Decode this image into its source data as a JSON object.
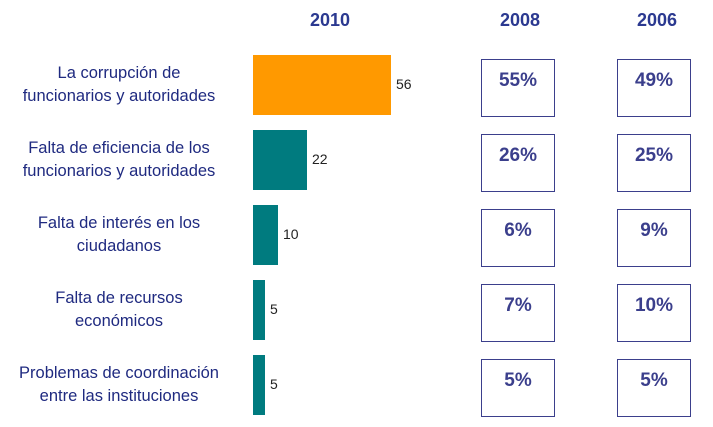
{
  "chart_data": {
    "type": "bar",
    "orientation": "horizontal",
    "categories": [
      "La corrupción de funcionarios y autoridades",
      "Falta de eficiencia de los funcionarios y autoridades",
      "Falta de interés en los ciudadanos",
      "Falta de recursos económicos",
      "Problemas de coordinación entre las instituciones"
    ],
    "category_lines": [
      [
        "La corrupción de",
        "funcionarios y autoridades"
      ],
      [
        "Falta de eficiencia de los",
        "funcionarios y autoridades"
      ],
      [
        "Falta de interés en los",
        "ciudadanos"
      ],
      [
        "Falta de recursos",
        "económicos"
      ],
      [
        "Problemas de coordinación",
        "entre las instituciones"
      ]
    ],
    "series": [
      {
        "name": "2010",
        "values": [
          56,
          22,
          10,
          5,
          5
        ],
        "value_labels": [
          "56",
          "22",
          "10",
          "5",
          "5"
        ]
      }
    ],
    "comparison_columns": [
      {
        "name": "2008",
        "values": [
          "55%",
          "26%",
          "6%",
          "7%",
          "5%"
        ]
      },
      {
        "name": "2006",
        "values": [
          "49%",
          "25%",
          "9%",
          "10%",
          "5%"
        ]
      }
    ],
    "colors": {
      "highlight": "#ff9900",
      "default": "#007b7f",
      "header": "#2b3990",
      "box": "#3b3f8c"
    },
    "highlight_index": 0,
    "xlim": [
      0,
      56
    ],
    "title": "",
    "xlabel": "",
    "ylabel": "",
    "grid": false,
    "legend": "none"
  }
}
